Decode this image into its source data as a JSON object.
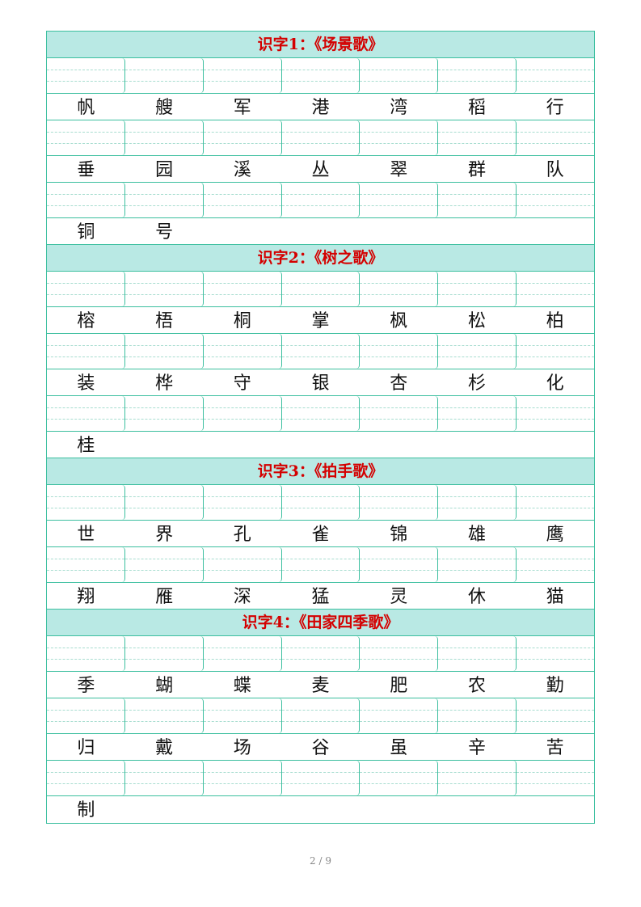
{
  "sections": [
    {
      "title": "识字1：《场景歌》",
      "chars": [
        "帆",
        "艘",
        "军",
        "港",
        "湾",
        "稻",
        "行",
        "垂",
        "园",
        "溪",
        "丛",
        "翠",
        "群",
        "队",
        "铜",
        "号"
      ]
    },
    {
      "title": "识字2：《树之歌》",
      "chars": [
        "榕",
        "梧",
        "桐",
        "掌",
        "枫",
        "松",
        "柏",
        "装",
        "桦",
        "守",
        "银",
        "杏",
        "杉",
        "化",
        "桂"
      ]
    },
    {
      "title": "识字3：《拍手歌》",
      "chars": [
        "世",
        "界",
        "孔",
        "雀",
        "锦",
        "雄",
        "鹰",
        "翔",
        "雁",
        "深",
        "猛",
        "灵",
        "休",
        "猫"
      ]
    },
    {
      "title": "识字4：《田家四季歌》",
      "chars": [
        "季",
        "蝴",
        "蝶",
        "麦",
        "肥",
        "农",
        "勤",
        "归",
        "戴",
        "场",
        "谷",
        "虽",
        "辛",
        "苦",
        "制"
      ]
    }
  ],
  "footer": {
    "page": "2 / 9"
  },
  "colors": {
    "header_bg": "#b9e9e4",
    "title": "#d40000",
    "grid": "#3cbf9f"
  }
}
